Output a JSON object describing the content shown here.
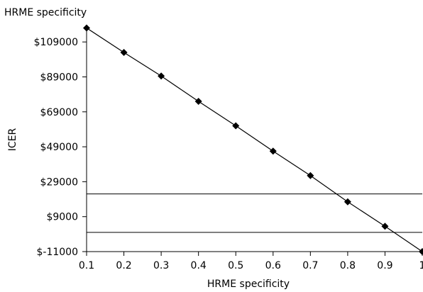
{
  "chart_data": {
    "type": "line",
    "title": "HRME specificity",
    "xlabel": "HRME specificity",
    "ylabel": "ICER",
    "x": [
      0.1,
      0.2,
      0.3,
      0.4,
      0.5,
      0.6,
      0.7,
      0.8,
      0.9,
      1
    ],
    "x_tick_labels": [
      "0.1",
      "0.2",
      "0.3",
      "0.4",
      "0.5",
      "0.6",
      "0.7",
      "0.8",
      "0.9",
      "1"
    ],
    "y_tick_values": [
      -11000,
      9000,
      29000,
      49000,
      69000,
      89000,
      109000
    ],
    "y_tick_labels": [
      "$-11000",
      "$9000",
      "$29000",
      "$49000",
      "$69000",
      "$89000",
      "$109000"
    ],
    "xlim": [
      0.1,
      1
    ],
    "ylim": [
      -11000,
      118000
    ],
    "series": [
      {
        "values": [
          117000,
          103000,
          89500,
          75000,
          61000,
          46500,
          32500,
          17500,
          3500,
          -11000
        ],
        "color": "#000000",
        "marker": "diamond"
      }
    ],
    "reference_lines": [
      {
        "y": 22000,
        "color": "#000000"
      },
      {
        "y": 0,
        "color": "#000000"
      }
    ],
    "grid": false,
    "legend": "none"
  }
}
